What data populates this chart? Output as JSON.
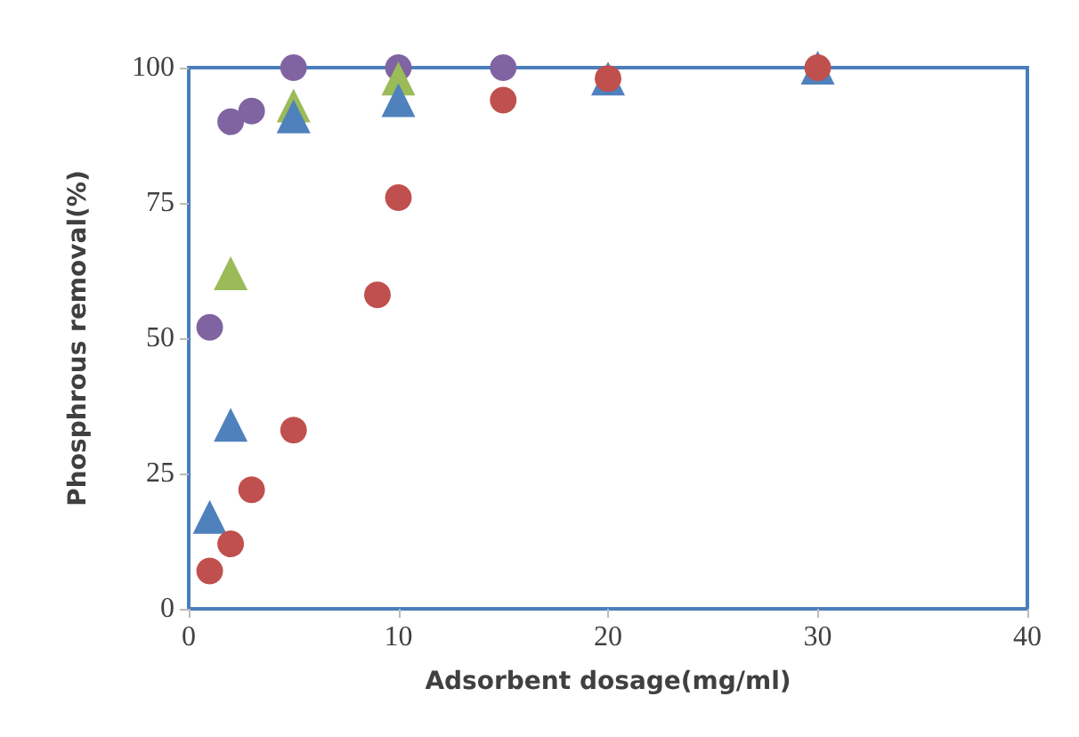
{
  "chart_data": {
    "type": "scatter",
    "xlabel": "Adsorbent dosage(mg/ml)",
    "ylabel": "Phosphrous removal(%)",
    "xlim": [
      0,
      40
    ],
    "xticks": [
      0,
      10,
      20,
      30,
      40
    ],
    "ylim": [
      0,
      100
    ],
    "yticks": [
      0,
      25,
      50,
      75,
      100
    ],
    "grid": false,
    "series": [
      {
        "color": "#8064a2",
        "marker": "circle",
        "x": [
          1,
          2,
          3,
          5,
          10,
          15
        ],
        "values": [
          52,
          90,
          92,
          100,
          100,
          100
        ]
      },
      {
        "color": "#9bbb59",
        "marker": "triangle",
        "x": [
          2,
          5,
          10
        ],
        "values": [
          62,
          93,
          98
        ]
      },
      {
        "color": "#4f81bd",
        "marker": "triangle",
        "x": [
          1,
          2,
          5,
          10,
          20,
          30
        ],
        "values": [
          17,
          34,
          91,
          94,
          98,
          100
        ]
      },
      {
        "color": "#c0504d",
        "marker": "circle",
        "x": [
          1,
          2,
          3,
          5,
          9,
          10,
          15,
          20,
          30
        ],
        "values": [
          7,
          12,
          22,
          33,
          58,
          76,
          94,
          98,
          100
        ]
      }
    ]
  }
}
